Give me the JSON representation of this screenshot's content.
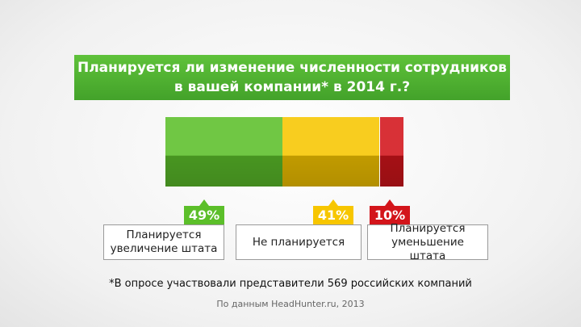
{
  "chart_data": {
    "type": "stacked-bar",
    "title": [
      "Планируется ли изменение численности сотрудников",
      "в вашей компании* в 2014 г.?"
    ],
    "categories": [
      "Планируется увеличение штата",
      "Не планируется",
      "Планируется уменьшение штата"
    ],
    "values": [
      49,
      41,
      10
    ],
    "value_labels": [
      "49%",
      "41%",
      "10%"
    ],
    "colors": [
      "#5cbf2a",
      "#f7c600",
      "#d3151b"
    ],
    "xlim": [
      0,
      100
    ],
    "footnote": "*В опросе участвовали представители 569 российских компаний",
    "source": "По данным HeadHunter.ru, 2013"
  }
}
